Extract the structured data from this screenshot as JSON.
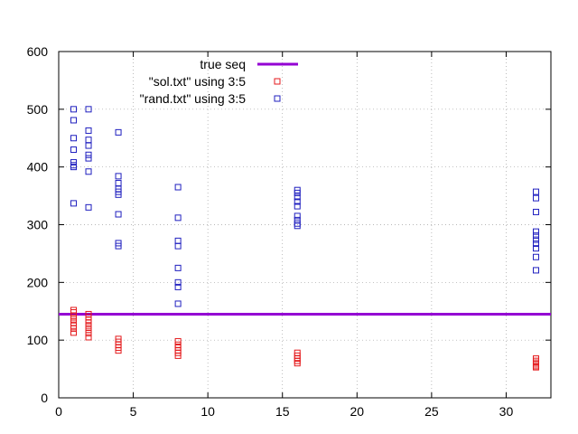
{
  "chart_data": {
    "type": "scatter",
    "title": "",
    "xlabel": "",
    "ylabel": "",
    "xlim": [
      0,
      33
    ],
    "ylim": [
      0,
      600
    ],
    "xticks": [
      0,
      5,
      10,
      15,
      20,
      25,
      30
    ],
    "yticks": [
      0,
      100,
      200,
      300,
      400,
      500,
      600
    ],
    "grid": true,
    "legend_position": "top-center",
    "lines": [
      {
        "name": "true seq",
        "y": 145,
        "color": "#9400d3"
      }
    ],
    "series": [
      {
        "name": "\"sol.txt\" using 3:5",
        "color": "#e41a1c",
        "points": [
          [
            1,
            152
          ],
          [
            1,
            148
          ],
          [
            1,
            142
          ],
          [
            1,
            136
          ],
          [
            1,
            130
          ],
          [
            1,
            125
          ],
          [
            1,
            120
          ],
          [
            1,
            113
          ],
          [
            2,
            145
          ],
          [
            2,
            140
          ],
          [
            2,
            135
          ],
          [
            2,
            130
          ],
          [
            2,
            124
          ],
          [
            2,
            118
          ],
          [
            2,
            112
          ],
          [
            2,
            105
          ],
          [
            4,
            102
          ],
          [
            4,
            97
          ],
          [
            4,
            92
          ],
          [
            4,
            87
          ],
          [
            4,
            82
          ],
          [
            8,
            98
          ],
          [
            8,
            92
          ],
          [
            8,
            87
          ],
          [
            8,
            82
          ],
          [
            8,
            78
          ],
          [
            8,
            73
          ],
          [
            16,
            78
          ],
          [
            16,
            73
          ],
          [
            16,
            68
          ],
          [
            16,
            64
          ],
          [
            16,
            60
          ],
          [
            32,
            68
          ],
          [
            32,
            64
          ],
          [
            32,
            61
          ],
          [
            32,
            58
          ],
          [
            32,
            55
          ],
          [
            32,
            53
          ]
        ]
      },
      {
        "name": "\"rand.txt\" using 3:5",
        "color": "#1f1fbf",
        "points": [
          [
            1,
            500
          ],
          [
            1,
            481
          ],
          [
            1,
            450
          ],
          [
            1,
            430
          ],
          [
            1,
            408
          ],
          [
            1,
            403
          ],
          [
            1,
            400
          ],
          [
            1,
            337
          ],
          [
            2,
            500
          ],
          [
            2,
            463
          ],
          [
            2,
            447
          ],
          [
            2,
            437
          ],
          [
            2,
            421
          ],
          [
            2,
            415
          ],
          [
            2,
            392
          ],
          [
            2,
            330
          ],
          [
            4,
            460
          ],
          [
            4,
            384
          ],
          [
            4,
            372
          ],
          [
            4,
            362
          ],
          [
            4,
            357
          ],
          [
            4,
            352
          ],
          [
            4,
            318
          ],
          [
            4,
            268
          ],
          [
            4,
            263
          ],
          [
            8,
            365
          ],
          [
            8,
            312
          ],
          [
            8,
            272
          ],
          [
            8,
            263
          ],
          [
            8,
            225
          ],
          [
            8,
            200
          ],
          [
            8,
            192
          ],
          [
            8,
            163
          ],
          [
            16,
            360
          ],
          [
            16,
            355
          ],
          [
            16,
            348
          ],
          [
            16,
            340
          ],
          [
            16,
            332
          ],
          [
            16,
            315
          ],
          [
            16,
            308
          ],
          [
            16,
            302
          ],
          [
            16,
            298
          ],
          [
            32,
            357
          ],
          [
            32,
            346
          ],
          [
            32,
            322
          ],
          [
            32,
            288
          ],
          [
            32,
            281
          ],
          [
            32,
            274
          ],
          [
            32,
            267
          ],
          [
            32,
            259
          ],
          [
            32,
            244
          ],
          [
            32,
            221
          ]
        ]
      }
    ]
  }
}
